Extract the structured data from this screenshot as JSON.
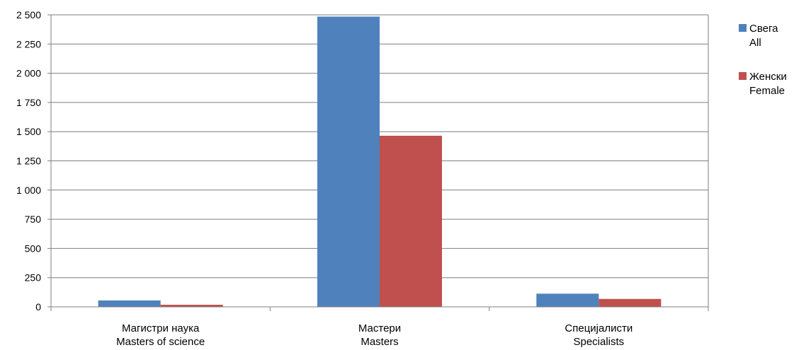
{
  "chart_data": {
    "type": "bar",
    "categories": [
      [
        "Магистри наука",
        "Masters of science"
      ],
      [
        "Мастери",
        "Masters"
      ],
      [
        "Специјалисти",
        "Specialists"
      ]
    ],
    "series": [
      {
        "name": [
          "Свега",
          "All"
        ],
        "color": "#4F81BD",
        "values": [
          55,
          2485,
          113
        ]
      },
      {
        "name": [
          "Женски",
          "Female"
        ],
        "color": "#C0504D",
        "values": [
          18,
          1465,
          68
        ]
      }
    ],
    "yticks": [
      "0",
      "250",
      "500",
      "750",
      "1 000",
      "1 250",
      "1 500",
      "1 750",
      "2 000",
      "2 250",
      "2 500"
    ],
    "ylim": [
      0,
      2500
    ],
    "grid": true,
    "legend": "right"
  }
}
